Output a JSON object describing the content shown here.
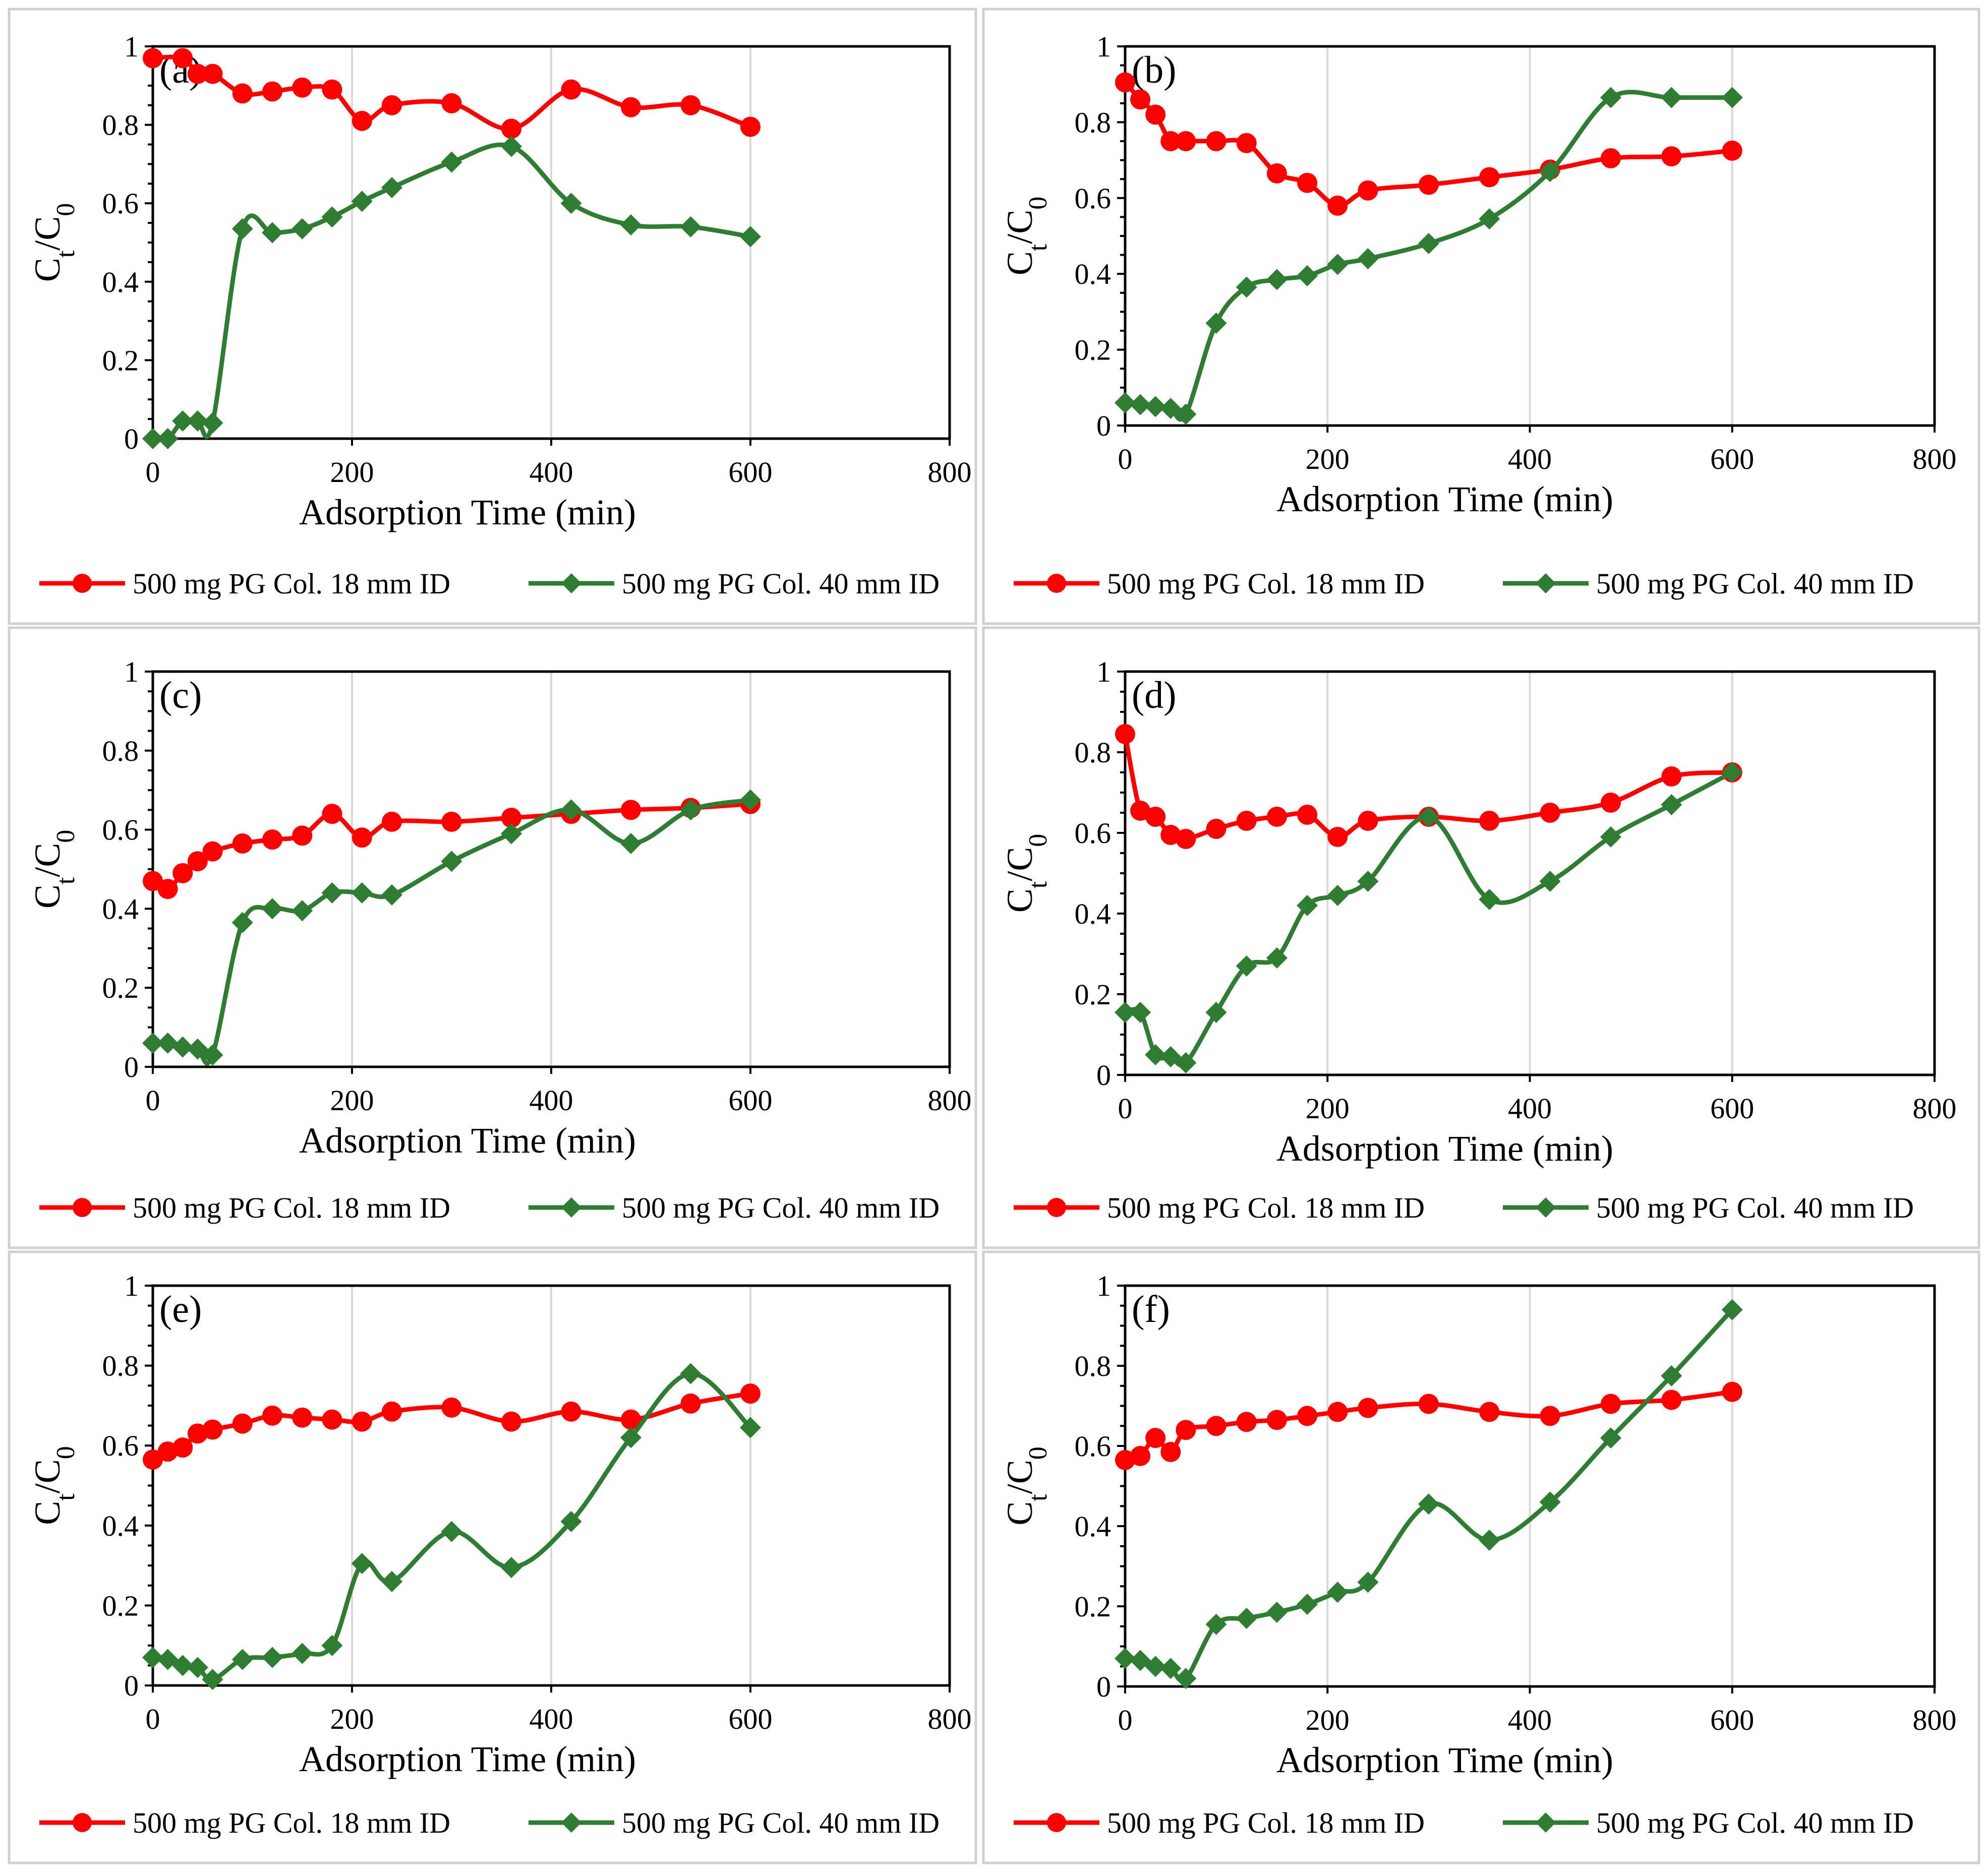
{
  "chart_data": [
    {
      "type": "line",
      "panel_label": "(a)",
      "xlabel": "Adsorption Time (min)",
      "ylabel": "C_t/C_0",
      "xlim": [
        0,
        800
      ],
      "ylim": [
        0,
        1
      ],
      "xticks": [
        0,
        200,
        400,
        600,
        800
      ],
      "yticks": [
        0,
        0.2,
        0.4,
        0.6,
        0.8,
        1
      ],
      "grid": "vertical",
      "legend": "bottom",
      "series": [
        {
          "name": "500 mg PG Col. 18 mm ID",
          "color": "#ff0000",
          "marker": "circle",
          "x": [
            0,
            30,
            45,
            60,
            90,
            120,
            150,
            180,
            210,
            240,
            300,
            360,
            420,
            480,
            540,
            600
          ],
          "y": [
            0.97,
            0.97,
            0.93,
            0.93,
            0.88,
            0.885,
            0.895,
            0.89,
            0.81,
            0.85,
            0.855,
            0.79,
            0.89,
            0.845,
            0.85,
            0.795
          ]
        },
        {
          "name": "500 mg PG Col. 40 mm ID",
          "color": "#2e7d32",
          "marker": "diamond",
          "x": [
            0,
            15,
            30,
            45,
            60,
            90,
            120,
            150,
            180,
            210,
            240,
            300,
            360,
            420,
            480,
            540,
            600
          ],
          "y": [
            0,
            0,
            0.045,
            0.045,
            0.04,
            0.535,
            0.525,
            0.535,
            0.565,
            0.605,
            0.64,
            0.705,
            0.745,
            0.6,
            0.545,
            0.54,
            0.515
          ]
        }
      ]
    },
    {
      "type": "line",
      "panel_label": "(b)",
      "xlabel": "Adsorption Time (min)",
      "ylabel": "C_t/C_0",
      "xlim": [
        0,
        800
      ],
      "ylim": [
        0,
        1
      ],
      "xticks": [
        0,
        200,
        400,
        600,
        800
      ],
      "yticks": [
        0,
        0.2,
        0.4,
        0.6,
        0.8,
        1
      ],
      "grid": "vertical",
      "legend": "bottom",
      "series": [
        {
          "name": "500 mg PG Col. 18 mm ID",
          "color": "#ff0000",
          "marker": "circle",
          "x": [
            0,
            15,
            30,
            45,
            60,
            90,
            120,
            150,
            180,
            210,
            240,
            300,
            360,
            420,
            480,
            540,
            600
          ],
          "y": [
            0.905,
            0.86,
            0.82,
            0.75,
            0.75,
            0.75,
            0.745,
            0.665,
            0.64,
            0.58,
            0.62,
            0.635,
            0.655,
            0.675,
            0.705,
            0.71,
            0.725
          ]
        },
        {
          "name": "500 mg PG Col. 40 mm ID",
          "color": "#2e7d32",
          "marker": "diamond",
          "x": [
            0,
            15,
            30,
            45,
            60,
            90,
            120,
            150,
            180,
            210,
            240,
            300,
            360,
            420,
            480,
            540,
            600
          ],
          "y": [
            0.06,
            0.055,
            0.05,
            0.045,
            0.03,
            0.27,
            0.365,
            0.385,
            0.395,
            0.425,
            0.44,
            0.48,
            0.545,
            0.67,
            0.865,
            0.865,
            0.865
          ]
        }
      ]
    },
    {
      "type": "line",
      "panel_label": "(c)",
      "xlabel": "Adsorption Time (min)",
      "ylabel": "C_t/C_0",
      "xlim": [
        0,
        800
      ],
      "ylim": [
        0,
        1
      ],
      "xticks": [
        0,
        200,
        400,
        600,
        800
      ],
      "yticks": [
        0,
        0.2,
        0.4,
        0.6,
        0.8,
        1
      ],
      "grid": "vertical",
      "legend": "bottom",
      "series": [
        {
          "name": "500 mg PG Col. 18 mm ID",
          "color": "#ff0000",
          "marker": "circle",
          "x": [
            0,
            15,
            30,
            45,
            60,
            90,
            120,
            150,
            180,
            210,
            240,
            300,
            360,
            420,
            480,
            540,
            600
          ],
          "y": [
            0.47,
            0.45,
            0.49,
            0.52,
            0.545,
            0.565,
            0.575,
            0.585,
            0.64,
            0.58,
            0.62,
            0.62,
            0.63,
            0.64,
            0.65,
            0.655,
            0.665
          ]
        },
        {
          "name": "500 mg PG Col. 40 mm ID",
          "color": "#2e7d32",
          "marker": "diamond",
          "x": [
            0,
            15,
            30,
            45,
            60,
            90,
            120,
            150,
            180,
            210,
            240,
            300,
            360,
            420,
            480,
            540,
            600
          ],
          "y": [
            0.06,
            0.06,
            0.05,
            0.045,
            0.03,
            0.365,
            0.4,
            0.395,
            0.44,
            0.44,
            0.435,
            0.52,
            0.59,
            0.65,
            0.565,
            0.65,
            0.675
          ]
        }
      ]
    },
    {
      "type": "line",
      "panel_label": "(d)",
      "xlabel": "Adsorption Time (min)",
      "ylabel": "C_t/C_0",
      "xlim": [
        0,
        800
      ],
      "ylim": [
        0,
        1
      ],
      "xticks": [
        0,
        200,
        400,
        600,
        800
      ],
      "yticks": [
        0,
        0.2,
        0.4,
        0.6,
        0.8,
        1
      ],
      "grid": "vertical",
      "legend": "bottom",
      "series": [
        {
          "name": "500 mg PG Col. 18 mm ID",
          "color": "#ff0000",
          "marker": "circle",
          "x": [
            0,
            15,
            30,
            45,
            60,
            90,
            120,
            150,
            180,
            210,
            240,
            300,
            360,
            420,
            480,
            540,
            600
          ],
          "y": [
            0.845,
            0.655,
            0.64,
            0.595,
            0.585,
            0.61,
            0.63,
            0.64,
            0.645,
            0.59,
            0.63,
            0.64,
            0.63,
            0.65,
            0.675,
            0.74,
            0.75
          ]
        },
        {
          "name": "500 mg PG Col. 40 mm ID",
          "color": "#2e7d32",
          "marker": "diamond",
          "x": [
            0,
            15,
            30,
            45,
            60,
            90,
            120,
            150,
            180,
            210,
            240,
            300,
            360,
            420,
            480,
            540,
            600
          ],
          "y": [
            0.155,
            0.155,
            0.05,
            0.045,
            0.03,
            0.155,
            0.27,
            0.29,
            0.42,
            0.445,
            0.48,
            0.64,
            0.435,
            0.48,
            0.59,
            0.67,
            0.75
          ]
        }
      ]
    },
    {
      "type": "line",
      "panel_label": "(e)",
      "xlabel": "Adsorption Time (min)",
      "ylabel": "C_t/C_0",
      "xlim": [
        0,
        800
      ],
      "ylim": [
        0,
        1
      ],
      "xticks": [
        0,
        200,
        400,
        600,
        800
      ],
      "yticks": [
        0,
        0.2,
        0.4,
        0.6,
        0.8,
        1
      ],
      "grid": "vertical",
      "legend": "bottom",
      "series": [
        {
          "name": "500 mg PG Col. 18 mm ID",
          "color": "#ff0000",
          "marker": "circle",
          "x": [
            0,
            15,
            30,
            45,
            60,
            90,
            120,
            150,
            180,
            210,
            240,
            300,
            360,
            420,
            480,
            540,
            600
          ],
          "y": [
            0.565,
            0.585,
            0.595,
            0.63,
            0.64,
            0.655,
            0.675,
            0.67,
            0.665,
            0.66,
            0.685,
            0.695,
            0.66,
            0.685,
            0.665,
            0.705,
            0.73
          ]
        },
        {
          "name": "500 mg PG Col. 40 mm ID",
          "color": "#2e7d32",
          "marker": "diamond",
          "x": [
            0,
            15,
            30,
            45,
            60,
            90,
            120,
            150,
            180,
            210,
            240,
            300,
            360,
            420,
            480,
            540,
            600
          ],
          "y": [
            0.07,
            0.065,
            0.05,
            0.045,
            0.015,
            0.065,
            0.07,
            0.08,
            0.1,
            0.305,
            0.26,
            0.385,
            0.295,
            0.41,
            0.62,
            0.78,
            0.645
          ]
        }
      ]
    },
    {
      "type": "line",
      "panel_label": "(f)",
      "xlabel": "Adsorption Time (min)",
      "ylabel": "C_t/C_0",
      "xlim": [
        0,
        800
      ],
      "ylim": [
        0,
        1
      ],
      "xticks": [
        0,
        200,
        400,
        600,
        800
      ],
      "yticks": [
        0,
        0.2,
        0.4,
        0.6,
        0.8,
        1
      ],
      "grid": "vertical",
      "legend": "bottom",
      "series": [
        {
          "name": "500 mg PG Col. 18 mm ID",
          "color": "#ff0000",
          "marker": "circle",
          "x": [
            0,
            15,
            30,
            45,
            60,
            90,
            120,
            150,
            180,
            210,
            240,
            300,
            360,
            420,
            480,
            540,
            600
          ],
          "y": [
            0.565,
            0.575,
            0.62,
            0.585,
            0.64,
            0.65,
            0.66,
            0.665,
            0.675,
            0.685,
            0.695,
            0.705,
            0.685,
            0.675,
            0.705,
            0.715,
            0.735
          ]
        },
        {
          "name": "500 mg PG Col. 40 mm ID",
          "color": "#2e7d32",
          "marker": "diamond",
          "x": [
            0,
            15,
            30,
            45,
            60,
            90,
            120,
            150,
            180,
            210,
            240,
            300,
            360,
            420,
            480,
            540,
            600
          ],
          "y": [
            0.07,
            0.065,
            0.05,
            0.045,
            0.02,
            0.155,
            0.17,
            0.185,
            0.205,
            0.235,
            0.26,
            0.455,
            0.365,
            0.46,
            0.62,
            0.775,
            0.94
          ]
        }
      ]
    }
  ]
}
